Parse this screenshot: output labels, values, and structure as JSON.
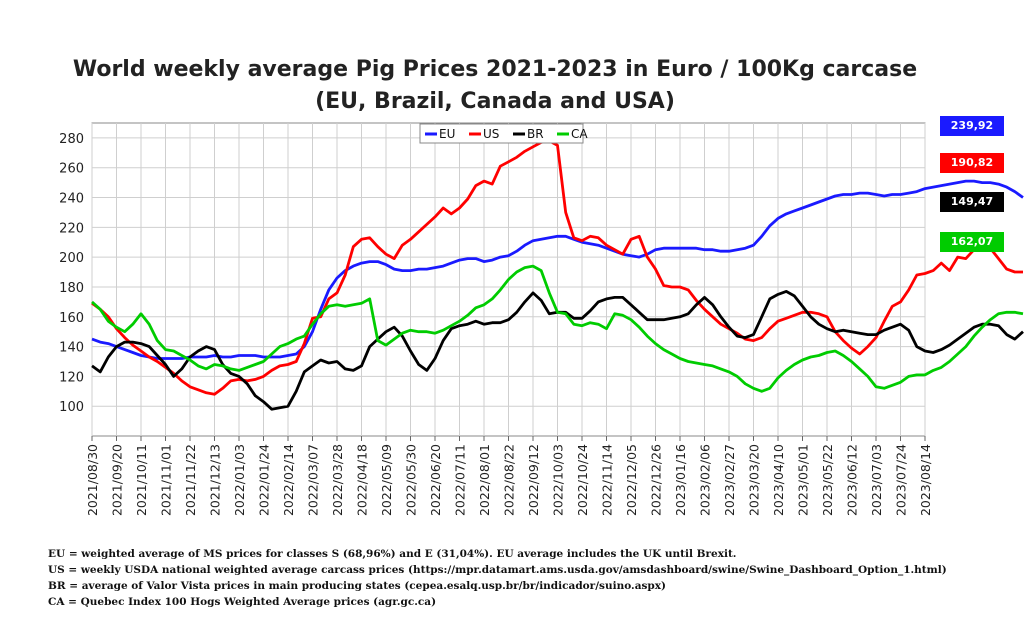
{
  "chart_data": {
    "type": "line",
    "title": "World weekly average Pig Prices 2021-2023 in Euro / 100Kg carcase",
    "subtitle": "(EU, Brazil, Canada and USA)",
    "xlabel": "",
    "ylabel": "",
    "ylim": [
      80,
      290
    ],
    "y_ticks": [
      100,
      120,
      140,
      160,
      180,
      200,
      220,
      240,
      260,
      280
    ],
    "grid": true,
    "legend_position": "top-center",
    "x_tick_labels": [
      "2021/08/30",
      "2021/09/20",
      "2021/10/11",
      "2021/11/01",
      "2021/11/22",
      "2021/12/13",
      "2022/01/03",
      "2022/01/24",
      "2022/02/14",
      "2022/03/07",
      "2022/03/28",
      "2022/04/18",
      "2022/05/09",
      "2022/05/30",
      "2022/06/20",
      "2022/07/11",
      "2022/08/01",
      "2022/08/22",
      "2022/09/12",
      "2022/10/03",
      "2022/10/24",
      "2022/11/14",
      "2022/12/05",
      "2022/12/26",
      "2023/01/16",
      "2023/02/06",
      "2023/02/27",
      "2023/03/20",
      "2023/04/10",
      "2023/05/01",
      "2023/05/22",
      "2023/06/12",
      "2023/07/03",
      "2023/07/24",
      "2023/08/14"
    ],
    "week_start": "2021/08/30",
    "series": [
      {
        "name": "EU",
        "color": "#1a1aff",
        "last_value": "239,92",
        "values": [
          145,
          143,
          142,
          140,
          138,
          136,
          134,
          133,
          132,
          132,
          132,
          132,
          133,
          133,
          133,
          134,
          133,
          133,
          134,
          134,
          134,
          133,
          133,
          133,
          134,
          135,
          140,
          150,
          165,
          178,
          186,
          191,
          194,
          196,
          197,
          197,
          195,
          192,
          191,
          191,
          192,
          192,
          193,
          194,
          196,
          198,
          199,
          199,
          197,
          198,
          200,
          201,
          204,
          208,
          211,
          212,
          213,
          214,
          214,
          212,
          210,
          209,
          208,
          206,
          204,
          202,
          201,
          200,
          202,
          205,
          206,
          206,
          206,
          206,
          206,
          205,
          205,
          204,
          204,
          205,
          206,
          208,
          214,
          221,
          226,
          229,
          231,
          233,
          235,
          237,
          239,
          241,
          242,
          242,
          243,
          243,
          242,
          241,
          242,
          242,
          243,
          244,
          246,
          247,
          248,
          249,
          250,
          251,
          251,
          250,
          250,
          249,
          247,
          244,
          240
        ]
      },
      {
        "name": "US",
        "color": "#ff0000",
        "last_value": "190,82",
        "values": [
          169,
          165,
          160,
          152,
          146,
          141,
          137,
          133,
          130,
          126,
          122,
          117,
          113,
          111,
          109,
          108,
          112,
          117,
          118,
          117,
          118,
          120,
          124,
          127,
          128,
          130,
          142,
          159,
          160,
          172,
          176,
          188,
          207,
          212,
          213,
          207,
          202,
          199,
          208,
          212,
          217,
          222,
          227,
          233,
          229,
          233,
          239,
          248,
          251,
          249,
          261,
          264,
          267,
          271,
          274,
          277,
          278,
          275,
          230,
          213,
          211,
          214,
          213,
          208,
          205,
          202,
          212,
          214,
          200,
          192,
          181,
          180,
          180,
          178,
          171,
          165,
          160,
          155,
          152,
          149,
          145,
          144,
          146,
          152,
          157,
          159,
          161,
          163,
          163,
          162,
          160,
          150,
          144,
          139,
          135,
          140,
          146,
          157,
          167,
          170,
          178,
          188,
          189,
          191,
          196,
          191,
          200,
          199,
          205,
          210,
          206,
          199,
          192,
          190,
          190
        ]
      },
      {
        "name": "BR",
        "color": "#000000",
        "last_value": "149,47",
        "values": [
          127,
          123,
          133,
          140,
          143,
          143,
          142,
          140,
          134,
          128,
          120,
          125,
          133,
          137,
          140,
          138,
          128,
          122,
          120,
          115,
          107,
          103,
          98,
          99,
          100,
          110,
          123,
          127,
          131,
          129,
          130,
          125,
          124,
          127,
          140,
          145,
          150,
          153,
          147,
          137,
          128,
          124,
          132,
          144,
          152,
          154,
          155,
          157,
          155,
          156,
          156,
          158,
          163,
          170,
          176,
          171,
          162,
          163,
          163,
          159,
          159,
          164,
          170,
          172,
          173,
          173,
          168,
          163,
          158,
          158,
          158,
          159,
          160,
          162,
          168,
          173,
          168,
          160,
          153,
          147,
          146,
          148,
          160,
          172,
          175,
          177,
          174,
          167,
          160,
          155,
          152,
          150,
          151,
          150,
          149,
          148,
          148,
          151,
          153,
          155,
          151,
          140,
          137,
          136,
          138,
          141,
          145,
          149,
          153,
          155,
          155,
          154,
          148,
          145,
          150
        ]
      },
      {
        "name": "CA",
        "color": "#00cc00",
        "last_value": "162,07",
        "values": [
          170,
          165,
          157,
          153,
          150,
          155,
          162,
          155,
          144,
          138,
          137,
          134,
          131,
          127,
          125,
          128,
          127,
          125,
          124,
          126,
          128,
          130,
          135,
          140,
          142,
          145,
          147,
          155,
          162,
          167,
          168,
          167,
          168,
          169,
          172,
          144,
          141,
          145,
          149,
          151,
          150,
          150,
          149,
          151,
          154,
          157,
          161,
          166,
          168,
          172,
          178,
          185,
          190,
          193,
          194,
          191,
          176,
          163,
          162,
          155,
          154,
          156,
          155,
          152,
          162,
          161,
          158,
          153,
          147,
          142,
          138,
          135,
          132,
          130,
          129,
          128,
          127,
          125,
          123,
          120,
          115,
          112,
          110,
          112,
          119,
          124,
          128,
          131,
          133,
          134,
          136,
          137,
          134,
          130,
          125,
          120,
          113,
          112,
          114,
          116,
          120,
          121,
          121,
          124,
          126,
          130,
          135,
          140,
          147,
          153,
          158,
          162,
          163,
          163,
          162
        ]
      }
    ]
  },
  "footnotes": {
    "eu": "EU = weighted average of MS prices for classes S (68,96%) and E (31,04%). EU average includes the UK until Brexit.",
    "us": "US = weekly USDA national weighted average carcass prices (https://mpr.datamart.ams.usda.gov/amsdashboard/swine/Swine_Dashboard_Option_1.html)",
    "br": "BR = average of Valor Vista prices in main producing states (cepea.esalq.usp.br/br/indicador/suino.aspx)",
    "ca": "CA = Quebec Index 100 Hogs Weighted Average prices (agr.gc.ca)"
  }
}
